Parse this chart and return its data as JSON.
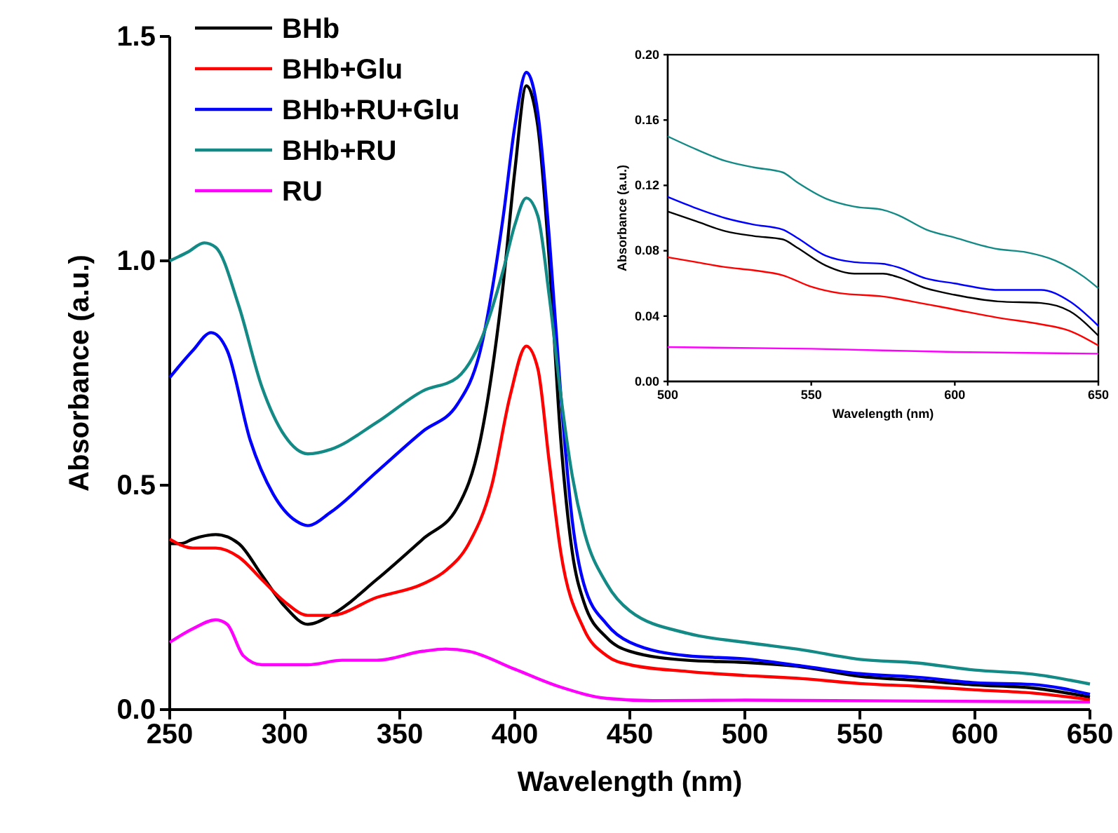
{
  "chart_data": [
    {
      "type": "line",
      "xlabel": "Wavelength (nm)",
      "ylabel": "Absorbance (a.u.)",
      "xlim": [
        250,
        650
      ],
      "xticks": [
        250,
        300,
        350,
        400,
        450,
        500,
        550,
        600,
        650
      ],
      "ylim": [
        0,
        1.5
      ],
      "yticks": [
        {
          "value": 0,
          "label": "0.0"
        },
        {
          "value": 0.5,
          "label": "0.5"
        },
        {
          "value": 1,
          "label": "1.0"
        },
        {
          "value": 1.5,
          "label": "1.5"
        }
      ],
      "legend": "top left",
      "grid": false,
      "series": [
        {
          "name": "BHb",
          "color": "#000000",
          "x": [
            250,
            255,
            260,
            270,
            280,
            290,
            300,
            310,
            320,
            340,
            360,
            375,
            385,
            395,
            400,
            405,
            410,
            415,
            420,
            425,
            430,
            440,
            450,
            475,
            500,
            525,
            550,
            575,
            600,
            625,
            650
          ],
          "values": [
            0.37,
            0.37,
            0.38,
            0.39,
            0.37,
            0.3,
            0.23,
            0.19,
            0.21,
            0.29,
            0.38,
            0.45,
            0.6,
            0.95,
            1.2,
            1.39,
            1.3,
            1.0,
            0.6,
            0.35,
            0.24,
            0.16,
            0.13,
            0.11,
            0.105,
            0.095,
            0.074,
            0.065,
            0.055,
            0.048,
            0.028
          ]
        },
        {
          "name": "BHb+Glu",
          "color": "#ff0000",
          "x": [
            250,
            260,
            270,
            280,
            290,
            300,
            310,
            320,
            340,
            360,
            370,
            380,
            390,
            398,
            405,
            410,
            415,
            420,
            430,
            440,
            450,
            475,
            500,
            525,
            550,
            575,
            600,
            625,
            650
          ],
          "values": [
            0.38,
            0.36,
            0.36,
            0.34,
            0.29,
            0.24,
            0.21,
            0.21,
            0.25,
            0.28,
            0.31,
            0.37,
            0.5,
            0.7,
            0.81,
            0.76,
            0.55,
            0.35,
            0.18,
            0.12,
            0.1,
            0.085,
            0.076,
            0.069,
            0.058,
            0.052,
            0.044,
            0.037,
            0.022
          ]
        },
        {
          "name": "BHb+RU+Glu",
          "color": "#0000ff",
          "x": [
            250,
            260,
            268,
            275,
            285,
            295,
            305,
            310,
            320,
            340,
            360,
            375,
            385,
            395,
            400,
            405,
            410,
            415,
            420,
            425,
            430,
            440,
            450,
            475,
            500,
            525,
            550,
            575,
            600,
            625,
            650
          ],
          "values": [
            0.74,
            0.8,
            0.84,
            0.8,
            0.6,
            0.48,
            0.42,
            0.41,
            0.44,
            0.53,
            0.62,
            0.68,
            0.8,
            1.1,
            1.3,
            1.42,
            1.33,
            1.05,
            0.7,
            0.42,
            0.28,
            0.19,
            0.15,
            0.12,
            0.113,
            0.097,
            0.08,
            0.072,
            0.06,
            0.056,
            0.034
          ]
        },
        {
          "name": "BHb+RU",
          "color": "#138a85",
          "x": [
            250,
            258,
            265,
            270,
            280,
            290,
            300,
            310,
            320,
            340,
            360,
            375,
            385,
            395,
            400,
            405,
            410,
            415,
            420,
            425,
            430,
            440,
            450,
            475,
            500,
            525,
            550,
            575,
            600,
            625,
            650
          ],
          "values": [
            1.0,
            1.02,
            1.04,
            1.03,
            0.9,
            0.72,
            0.61,
            0.57,
            0.58,
            0.64,
            0.71,
            0.74,
            0.82,
            0.98,
            1.08,
            1.14,
            1.1,
            0.92,
            0.7,
            0.52,
            0.4,
            0.28,
            0.22,
            0.17,
            0.15,
            0.133,
            0.112,
            0.104,
            0.088,
            0.079,
            0.057
          ]
        },
        {
          "name": "RU",
          "color": "#ff00ff",
          "x": [
            250,
            260,
            270,
            275,
            282,
            290,
            310,
            325,
            340,
            360,
            370,
            380,
            400,
            420,
            440,
            460,
            500,
            650
          ],
          "values": [
            0.15,
            0.18,
            0.2,
            0.19,
            0.12,
            0.1,
            0.1,
            0.11,
            0.11,
            0.13,
            0.135,
            0.13,
            0.09,
            0.05,
            0.025,
            0.02,
            0.021,
            0.017
          ]
        }
      ]
    },
    {
      "type": "line",
      "xlabel": "Wavelength (nm)",
      "ylabel": "Absorbance (a.u.)",
      "xlim": [
        500,
        650
      ],
      "xticks": [
        500,
        550,
        600,
        650
      ],
      "ylim": [
        0,
        0.2
      ],
      "yticks": [
        {
          "value": 0,
          "label": "0.00"
        },
        {
          "value": 0.04,
          "label": "0.04"
        },
        {
          "value": 0.08,
          "label": "0.08"
        },
        {
          "value": 0.12,
          "label": "0.12"
        },
        {
          "value": 0.16,
          "label": "0.16"
        },
        {
          "value": 0.2,
          "label": "0.20"
        }
      ],
      "grid": false,
      "series": [
        {
          "color": "#138a85",
          "x": [
            500,
            510,
            520,
            530,
            540,
            545,
            555,
            565,
            575,
            580,
            590,
            600,
            615,
            625,
            635,
            645,
            650
          ],
          "values": [
            0.15,
            0.142,
            0.135,
            0.131,
            0.128,
            0.122,
            0.112,
            0.107,
            0.105,
            0.102,
            0.093,
            0.088,
            0.081,
            0.079,
            0.074,
            0.064,
            0.057
          ]
        },
        {
          "color": "#0000ff",
          "x": [
            500,
            510,
            520,
            530,
            540,
            545,
            555,
            565,
            575,
            580,
            590,
            600,
            615,
            630,
            640,
            650
          ],
          "values": [
            0.113,
            0.106,
            0.1,
            0.096,
            0.093,
            0.088,
            0.077,
            0.073,
            0.072,
            0.07,
            0.063,
            0.06,
            0.056,
            0.056,
            0.049,
            0.034
          ]
        },
        {
          "color": "#000000",
          "x": [
            500,
            510,
            520,
            530,
            540,
            545,
            555,
            565,
            575,
            580,
            590,
            600,
            615,
            630,
            640,
            650
          ],
          "values": [
            0.104,
            0.098,
            0.092,
            0.089,
            0.087,
            0.082,
            0.071,
            0.066,
            0.066,
            0.064,
            0.057,
            0.053,
            0.049,
            0.048,
            0.043,
            0.028
          ]
        },
        {
          "color": "#ff0000",
          "x": [
            500,
            510,
            520,
            530,
            540,
            550,
            560,
            575,
            585,
            600,
            615,
            630,
            640,
            650
          ],
          "values": [
            0.076,
            0.073,
            0.07,
            0.068,
            0.065,
            0.058,
            0.054,
            0.052,
            0.049,
            0.044,
            0.039,
            0.035,
            0.031,
            0.022
          ]
        },
        {
          "color": "#ff00ff",
          "x": [
            500,
            550,
            600,
            650
          ],
          "values": [
            0.021,
            0.02,
            0.018,
            0.017
          ]
        }
      ]
    }
  ]
}
